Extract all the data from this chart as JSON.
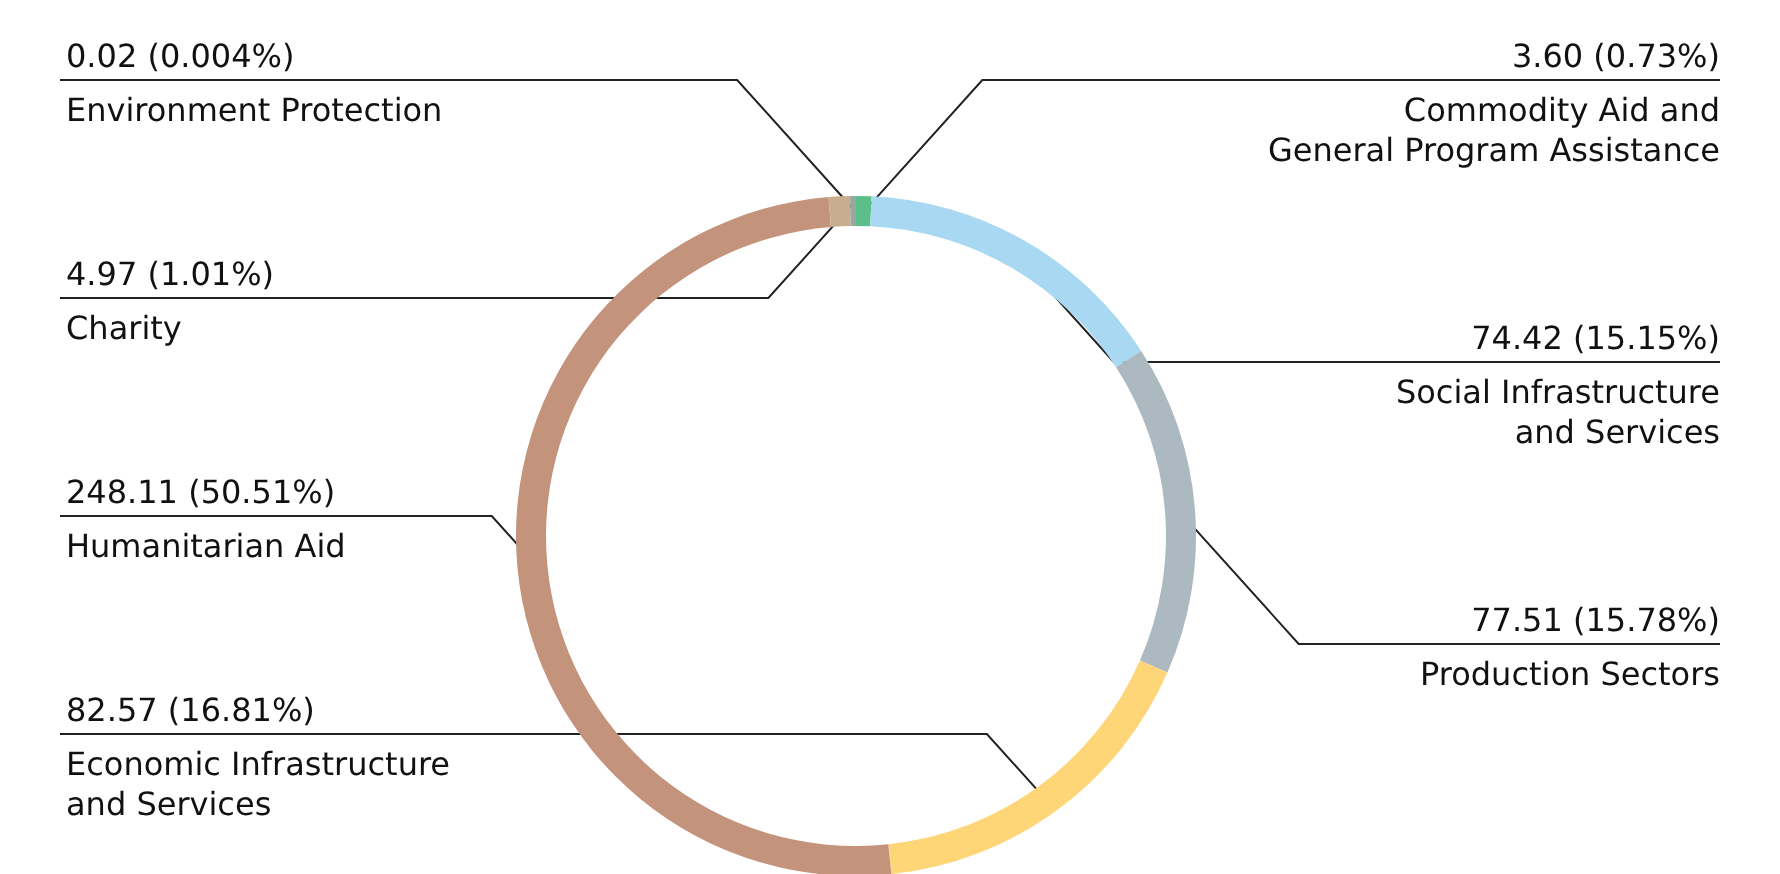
{
  "chart_data": {
    "type": "donut",
    "categories": [
      "Commodity Aid and\nGeneral Program Assistance",
      "Social Infrastructure\nand Services",
      "Production Sectors",
      "Economic Infrastructure\nand Services",
      "Humanitarian Aid",
      "Charity",
      "Environment Protection"
    ],
    "values": [
      3.6,
      74.42,
      77.51,
      82.57,
      248.11,
      4.97,
      0.02
    ],
    "value_labels": [
      "3.60 (0.73%)",
      "74.42 (15.15%)",
      "77.51 (15.78%)",
      "82.57 (16.81%)",
      "248.11 (50.51%)",
      "4.97 (1.01%)",
      "0.02 (0.004%)"
    ],
    "colors": [
      "#5cbf8a",
      "#a8d8f2",
      "#adb9c1",
      "#ffd677",
      "#c4937b",
      "#c8ad8e",
      "#9aa6a0"
    ],
    "legend": false
  }
}
